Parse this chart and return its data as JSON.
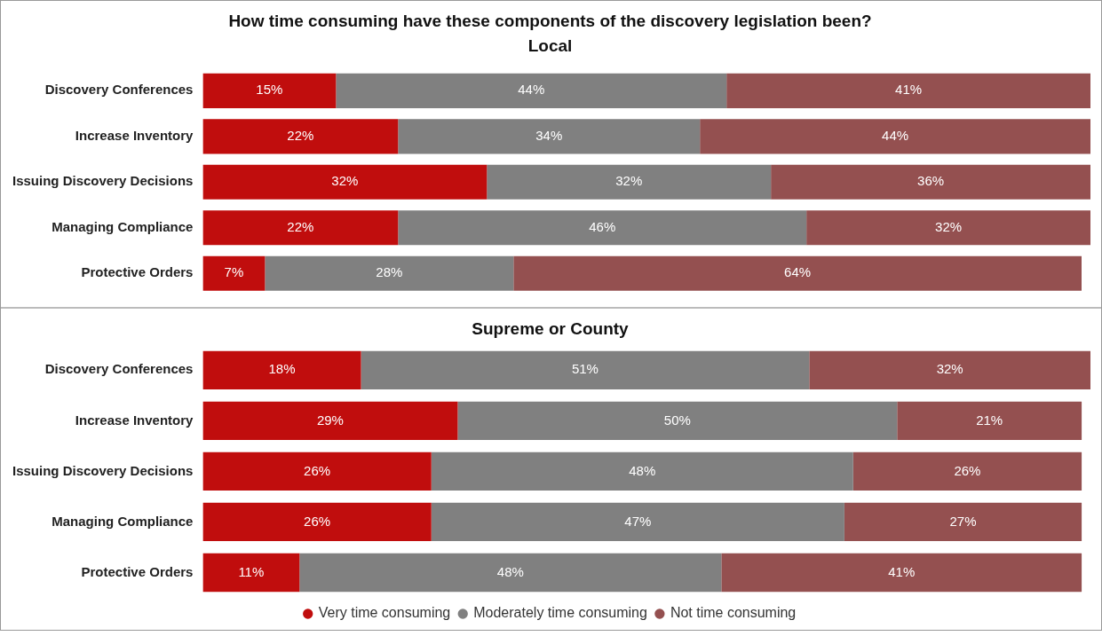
{
  "chart_data": [
    {
      "type": "bar",
      "title": "How time consuming have these components of the discovery legislation been?",
      "subtitle": "Local",
      "orientation": "horizontal",
      "stacked": true,
      "tick_labels": "y",
      "legend": false,
      "categories": [
        "Discovery Conferences",
        "Increase Inventory",
        "Issuing Discovery Decisions",
        "Managing Compliance",
        "Protective Orders"
      ],
      "series": [
        {
          "color": "#c00d0d",
          "values": [
            15,
            22,
            32,
            22,
            7
          ],
          "value_labels": [
            "15%",
            "22%",
            "32%",
            "22%",
            "7%"
          ]
        },
        {
          "color": "#808080",
          "values": [
            44,
            34,
            32,
            46,
            28
          ],
          "value_labels": [
            "44%",
            "34%",
            "32%",
            "46%",
            "28%"
          ]
        },
        {
          "color": "#945050",
          "values": [
            41,
            44,
            36,
            32,
            64
          ],
          "value_labels": [
            "41%",
            "44%",
            "36%",
            "32%",
            "64%"
          ]
        }
      ]
    },
    {
      "type": "bar",
      "title": "Supreme or County",
      "orientation": "horizontal",
      "stacked": true,
      "tick_labels": "y",
      "legend": "bottom",
      "categories": [
        "Discovery Conferences",
        "Increase Inventory",
        "Issuing Discovery Decisions",
        "Managing Compliance",
        "Protective Orders"
      ],
      "series": [
        {
          "name": "Very time consuming",
          "color": "#c00d0d",
          "values": [
            18,
            29,
            26,
            26,
            11
          ],
          "value_labels": [
            "18%",
            "29%",
            "26%",
            "26%",
            "11%"
          ]
        },
        {
          "name": "Moderately time consuming",
          "color": "#808080",
          "values": [
            51,
            50,
            48,
            47,
            48
          ],
          "value_labels": [
            "51%",
            "50%",
            "48%",
            "47%",
            "48%"
          ]
        },
        {
          "name": "Not time consuming",
          "color": "#945050",
          "values": [
            32,
            21,
            26,
            27,
            41
          ],
          "value_labels": [
            "32%",
            "21%",
            "26%",
            "27%",
            "41%"
          ]
        }
      ]
    }
  ]
}
